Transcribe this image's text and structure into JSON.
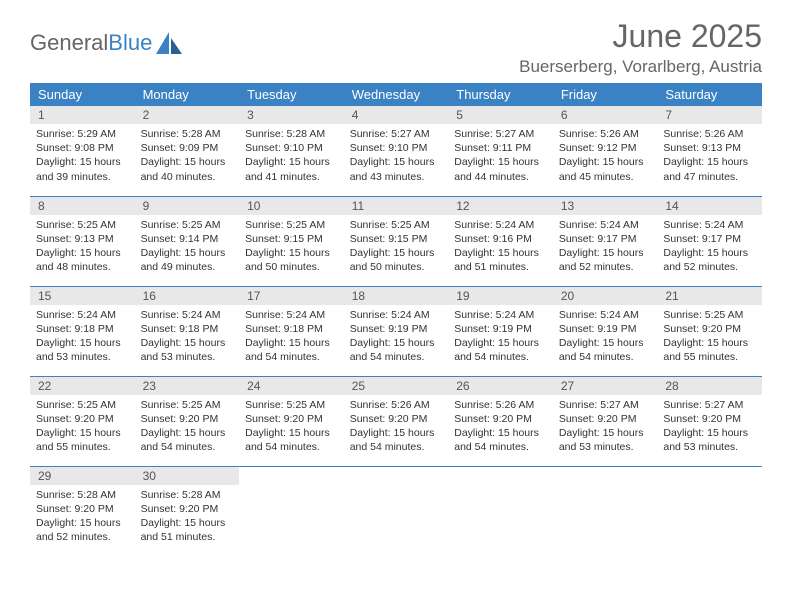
{
  "logo": {
    "text_gray": "General",
    "text_blue": "Blue"
  },
  "title": "June 2025",
  "location": "Buerserberg, Vorarlberg, Austria",
  "colors": {
    "header_bg": "#3b82c4",
    "header_text": "#ffffff",
    "daynum_bg": "#e8e8e8",
    "border": "#3b82c4",
    "title_color": "#666666",
    "logo_gray": "#666666",
    "logo_blue": "#3b82c4"
  },
  "weekdays": [
    "Sunday",
    "Monday",
    "Tuesday",
    "Wednesday",
    "Thursday",
    "Friday",
    "Saturday"
  ],
  "days": [
    {
      "n": 1,
      "sr": "5:29 AM",
      "ss": "9:08 PM",
      "dl": "15 hours and 39 minutes."
    },
    {
      "n": 2,
      "sr": "5:28 AM",
      "ss": "9:09 PM",
      "dl": "15 hours and 40 minutes."
    },
    {
      "n": 3,
      "sr": "5:28 AM",
      "ss": "9:10 PM",
      "dl": "15 hours and 41 minutes."
    },
    {
      "n": 4,
      "sr": "5:27 AM",
      "ss": "9:10 PM",
      "dl": "15 hours and 43 minutes."
    },
    {
      "n": 5,
      "sr": "5:27 AM",
      "ss": "9:11 PM",
      "dl": "15 hours and 44 minutes."
    },
    {
      "n": 6,
      "sr": "5:26 AM",
      "ss": "9:12 PM",
      "dl": "15 hours and 45 minutes."
    },
    {
      "n": 7,
      "sr": "5:26 AM",
      "ss": "9:13 PM",
      "dl": "15 hours and 47 minutes."
    },
    {
      "n": 8,
      "sr": "5:25 AM",
      "ss": "9:13 PM",
      "dl": "15 hours and 48 minutes."
    },
    {
      "n": 9,
      "sr": "5:25 AM",
      "ss": "9:14 PM",
      "dl": "15 hours and 49 minutes."
    },
    {
      "n": 10,
      "sr": "5:25 AM",
      "ss": "9:15 PM",
      "dl": "15 hours and 50 minutes."
    },
    {
      "n": 11,
      "sr": "5:25 AM",
      "ss": "9:15 PM",
      "dl": "15 hours and 50 minutes."
    },
    {
      "n": 12,
      "sr": "5:24 AM",
      "ss": "9:16 PM",
      "dl": "15 hours and 51 minutes."
    },
    {
      "n": 13,
      "sr": "5:24 AM",
      "ss": "9:17 PM",
      "dl": "15 hours and 52 minutes."
    },
    {
      "n": 14,
      "sr": "5:24 AM",
      "ss": "9:17 PM",
      "dl": "15 hours and 52 minutes."
    },
    {
      "n": 15,
      "sr": "5:24 AM",
      "ss": "9:18 PM",
      "dl": "15 hours and 53 minutes."
    },
    {
      "n": 16,
      "sr": "5:24 AM",
      "ss": "9:18 PM",
      "dl": "15 hours and 53 minutes."
    },
    {
      "n": 17,
      "sr": "5:24 AM",
      "ss": "9:18 PM",
      "dl": "15 hours and 54 minutes."
    },
    {
      "n": 18,
      "sr": "5:24 AM",
      "ss": "9:19 PM",
      "dl": "15 hours and 54 minutes."
    },
    {
      "n": 19,
      "sr": "5:24 AM",
      "ss": "9:19 PM",
      "dl": "15 hours and 54 minutes."
    },
    {
      "n": 20,
      "sr": "5:24 AM",
      "ss": "9:19 PM",
      "dl": "15 hours and 54 minutes."
    },
    {
      "n": 21,
      "sr": "5:25 AM",
      "ss": "9:20 PM",
      "dl": "15 hours and 55 minutes."
    },
    {
      "n": 22,
      "sr": "5:25 AM",
      "ss": "9:20 PM",
      "dl": "15 hours and 55 minutes."
    },
    {
      "n": 23,
      "sr": "5:25 AM",
      "ss": "9:20 PM",
      "dl": "15 hours and 54 minutes."
    },
    {
      "n": 24,
      "sr": "5:25 AM",
      "ss": "9:20 PM",
      "dl": "15 hours and 54 minutes."
    },
    {
      "n": 25,
      "sr": "5:26 AM",
      "ss": "9:20 PM",
      "dl": "15 hours and 54 minutes."
    },
    {
      "n": 26,
      "sr": "5:26 AM",
      "ss": "9:20 PM",
      "dl": "15 hours and 54 minutes."
    },
    {
      "n": 27,
      "sr": "5:27 AM",
      "ss": "9:20 PM",
      "dl": "15 hours and 53 minutes."
    },
    {
      "n": 28,
      "sr": "5:27 AM",
      "ss": "9:20 PM",
      "dl": "15 hours and 53 minutes."
    },
    {
      "n": 29,
      "sr": "5:28 AM",
      "ss": "9:20 PM",
      "dl": "15 hours and 52 minutes."
    },
    {
      "n": 30,
      "sr": "5:28 AM",
      "ss": "9:20 PM",
      "dl": "15 hours and 51 minutes."
    }
  ],
  "labels": {
    "sunrise": "Sunrise:",
    "sunset": "Sunset:",
    "daylight": "Daylight:"
  }
}
